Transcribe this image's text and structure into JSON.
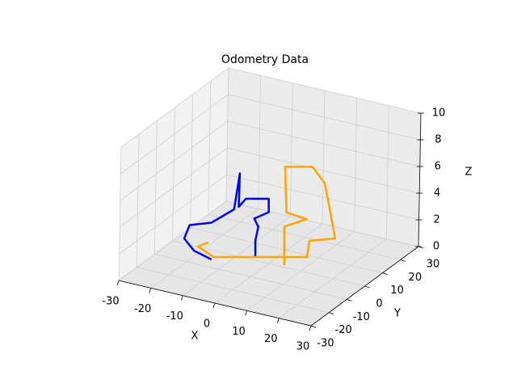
{
  "chart_data": {
    "type": "line3d",
    "title": "Odometry Data",
    "xlabel": "X",
    "ylabel": "Y",
    "zlabel": "Z",
    "xlim": [
      -30,
      30
    ],
    "ylim": [
      -30,
      30
    ],
    "zlim": [
      0,
      10
    ],
    "xticks": [
      -30,
      -20,
      -10,
      0,
      10,
      20,
      30
    ],
    "yticks": [
      -30,
      -20,
      -10,
      0,
      10,
      20,
      30
    ],
    "zticks": [
      0,
      2,
      4,
      6,
      8,
      10
    ],
    "grid": true,
    "series": [
      {
        "color": "#0000ff",
        "x": [
          -14.8,
          -21.8,
          -28.0,
          -26.8,
          -22.4,
          -17.1,
          -14.6,
          -16.8,
          -17.7,
          -12.3,
          -12.2,
          -13.6,
          -10.0,
          -10.4,
          -5.2
        ],
        "y": [
          -5.4,
          -2.7,
          3.0,
          3.7,
          8.05,
          11.05,
          9.4,
          13.1,
          18.7,
          21.8,
          21.8,
          16.2,
          12.0,
          11.2,
          1.9
        ],
        "z": [
          0,
          0,
          0,
          1,
          1,
          2,
          5,
          2,
          2,
          2,
          1,
          1,
          1,
          0,
          0
        ]
      },
      {
        "color": "#ffa500",
        "x": [
          -21.0,
          -22.2,
          -15.0,
          7.0,
          2.4,
          7.7,
          7.6,
          4.5,
          0.5,
          -6.0,
          -3.7,
          3.2,
          -3.9,
          4.2
        ],
        "y": [
          3.9,
          0.2,
          -3.7,
          8.9,
          18.5,
          23.4,
          20.9,
          22.8,
          23.0,
          19.3,
          16.3,
          15.3,
          15.6,
          1.2
        ],
        "z": [
          0,
          0,
          0,
          0,
          0,
          0,
          2,
          4,
          5,
          5,
          2,
          2,
          1,
          0
        ]
      }
    ]
  }
}
